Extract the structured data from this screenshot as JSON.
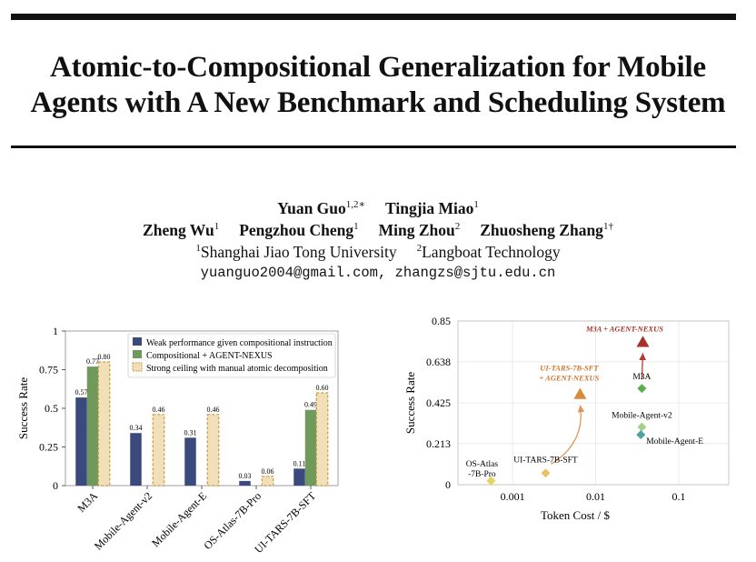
{
  "paper": {
    "title_line1": "Atomic-to-Compositional Generalization for Mobile",
    "title_line2": "Agents with A New Benchmark and Scheduling System",
    "authors_line1": [
      {
        "name": "Yuan Guo",
        "sup": "1,2∗"
      },
      {
        "name": "Tingjia Miao",
        "sup": "1"
      }
    ],
    "authors_line2": [
      {
        "name": "Zheng Wu",
        "sup": "1"
      },
      {
        "name": "Pengzhou Cheng",
        "sup": "1"
      },
      {
        "name": "Ming Zhou",
        "sup": "2"
      },
      {
        "name": "Zhuosheng Zhang",
        "sup": "1†"
      }
    ],
    "affiliations": [
      {
        "sup": "1",
        "name": "Shanghai Jiao Tong University"
      },
      {
        "sup": "2",
        "name": "Langboat Technology"
      }
    ],
    "emails": "yuanguo2004@gmail.com, zhangzs@sjtu.edu.cn"
  },
  "chart_data": [
    {
      "type": "bar",
      "ylabel": "Success Rate",
      "xlabel": "",
      "ylim": [
        0,
        1
      ],
      "yticks": [
        "0",
        "0.25",
        "0.5",
        "0.75",
        "1"
      ],
      "categories": [
        "M3A",
        "Mobile-Agent-v2",
        "Mobile-Agent-E",
        "OS-Atlas-7B-Pro",
        "UI-TARS-7B-SFT"
      ],
      "legend_position": "top-right",
      "series": [
        {
          "name": "Weak performance given compositional instruction",
          "color": "#3b4a7d",
          "values": [
            0.57,
            0.34,
            0.31,
            0.03,
            0.11
          ],
          "labels": [
            "0.57",
            "0.34",
            "0.31",
            "0.03",
            "0.11"
          ]
        },
        {
          "name": "Compositional + AGENT-NEXUS",
          "color": "#6f9a5c",
          "values": [
            0.77,
            null,
            null,
            null,
            0.49
          ],
          "labels": [
            "0.77",
            "",
            "",
            "",
            "0.49"
          ]
        },
        {
          "name": "Strong ceiling with manual atomic decomposition",
          "color": "#d9b577",
          "values": [
            0.8,
            0.46,
            0.46,
            0.06,
            0.6
          ],
          "labels": [
            "0.80",
            "0.46",
            "0.46",
            "0.06",
            "0.60"
          ]
        }
      ]
    },
    {
      "type": "scatter",
      "xlabel": "Token Cost / $",
      "ylabel": "Success Rate",
      "xscale": "log",
      "xlim": [
        0.00022,
        0.4
      ],
      "ylim": [
        0,
        0.85
      ],
      "xticks": [
        {
          "v": 0.001,
          "label": "0.001"
        },
        {
          "v": 0.01,
          "label": "0.01"
        },
        {
          "v": 0.1,
          "label": "0.1"
        }
      ],
      "yticks": [
        "0",
        "0.213",
        "0.425",
        "0.638",
        "0.85"
      ],
      "points": [
        {
          "label": "OS-Atlas\n-7B-Pro",
          "x": 0.00055,
          "y": 0.02,
          "shape": "diamond",
          "color": "#e9d35a"
        },
        {
          "label": "UI-TARS-7B-SFT",
          "x": 0.0025,
          "y": 0.06,
          "shape": "diamond",
          "color": "#e6c36a"
        },
        {
          "label": "Mobile-Agent-v2",
          "x": 0.036,
          "y": 0.3,
          "shape": "diamond",
          "color": "#a3d38a"
        },
        {
          "label": "Mobile-Agent-E",
          "x": 0.035,
          "y": 0.26,
          "shape": "diamond",
          "color": "#4fa39c"
        },
        {
          "label": "M3A",
          "x": 0.036,
          "y": 0.5,
          "shape": "diamond",
          "color": "#59b04a"
        },
        {
          "label": "UI-TARS-7B-SFT\n+ AGENT-NEXUS",
          "x": 0.0065,
          "y": 0.47,
          "shape": "triangle",
          "color": "#d98b3a"
        },
        {
          "label": "M3A + AGENT-NEXUS",
          "x": 0.037,
          "y": 0.74,
          "shape": "triangle",
          "color": "#a8322b"
        }
      ]
    }
  ]
}
